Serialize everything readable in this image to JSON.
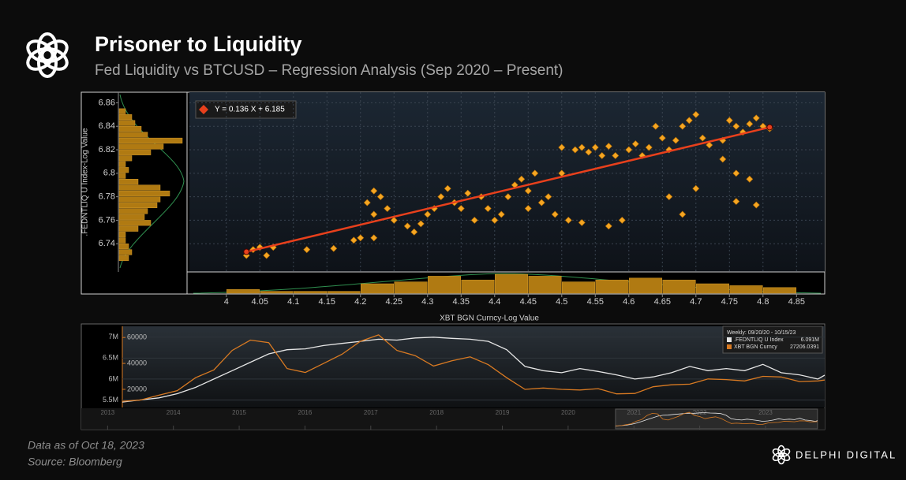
{
  "header": {
    "title": "Prisoner to Liquidity",
    "subtitle": "Fed Liquidity vs BTCUSD – Regression Analysis (Sep 2020 – Present)"
  },
  "chart_data": [
    {
      "type": "scatter",
      "x_label": "XBT BGN Curncy-Log Value",
      "y_label": ".FEDNTLIQ U Index-Log Value",
      "x": [
        4.03,
        4.04,
        4.05,
        4.06,
        4.07,
        4.12,
        4.16,
        4.19,
        4.2,
        4.22,
        4.21,
        4.22,
        4.23,
        4.24,
        4.22,
        4.25,
        4.27,
        4.28,
        4.3,
        4.29,
        4.31,
        4.32,
        4.33,
        4.34,
        4.35,
        4.36,
        4.37,
        4.38,
        4.39,
        4.4,
        4.41,
        4.42,
        4.43,
        4.44,
        4.45,
        4.46,
        4.45,
        4.47,
        4.48,
        4.49,
        4.5,
        4.5,
        4.52,
        4.53,
        4.54,
        4.55,
        4.56,
        4.57,
        4.58,
        4.51,
        4.53,
        4.57,
        4.59,
        4.6,
        4.61,
        4.62,
        4.63,
        4.64,
        4.65,
        4.66,
        4.67,
        4.68,
        4.69,
        4.7,
        4.71,
        4.66,
        4.68,
        4.7,
        4.74,
        4.75,
        4.76,
        4.77,
        4.78,
        4.79,
        4.76,
        4.78,
        4.79,
        4.8,
        4.81,
        4.76,
        4.74,
        4.72
      ],
      "y": [
        6.73,
        6.735,
        6.737,
        6.73,
        6.737,
        6.735,
        6.736,
        6.743,
        6.745,
        6.745,
        6.775,
        6.785,
        6.78,
        6.77,
        6.765,
        6.76,
        6.755,
        6.75,
        6.765,
        6.757,
        6.77,
        6.78,
        6.787,
        6.775,
        6.77,
        6.783,
        6.76,
        6.78,
        6.77,
        6.76,
        6.765,
        6.78,
        6.79,
        6.795,
        6.785,
        6.8,
        6.77,
        6.775,
        6.78,
        6.765,
        6.8,
        6.822,
        6.82,
        6.822,
        6.818,
        6.822,
        6.815,
        6.823,
        6.815,
        6.76,
        6.758,
        6.755,
        6.76,
        6.82,
        6.825,
        6.815,
        6.822,
        6.84,
        6.83,
        6.82,
        6.828,
        6.84,
        6.845,
        6.85,
        6.83,
        6.78,
        6.765,
        6.787,
        6.828,
        6.845,
        6.84,
        6.835,
        6.842,
        6.847,
        6.8,
        6.795,
        6.773,
        6.84,
        6.838,
        6.776,
        6.812,
        6.824
      ],
      "color": "#f5a623",
      "xlim": [
        3.945,
        4.892
      ],
      "ylim": [
        6.716,
        6.869
      ],
      "xticks": [
        4,
        4.05,
        4.1,
        4.15,
        4.2,
        4.25,
        4.3,
        4.35,
        4.4,
        4.45,
        4.5,
        4.55,
        4.6,
        4.65,
        4.7,
        4.75,
        4.8,
        4.85
      ],
      "yticks": [
        6.74,
        6.76,
        6.78,
        6.8,
        6.82,
        6.84,
        6.86
      ],
      "grid": true,
      "regression": {
        "label": "Y = 0.136 X + 6.185",
        "slope": 0.136,
        "intercept": 6.185,
        "color": "#e8401c"
      }
    },
    {
      "type": "histogram",
      "orientation": "horizontal",
      "color": "#b07a12",
      "bins": [
        6.725,
        6.73,
        6.735,
        6.74,
        6.745,
        6.75,
        6.755,
        6.76,
        6.765,
        6.77,
        6.775,
        6.78,
        6.785,
        6.79,
        6.795,
        6.8,
        6.805,
        6.81,
        6.815,
        6.82,
        6.825,
        6.83,
        6.835,
        6.84,
        6.845,
        6.85,
        6.855
      ],
      "counts": [
        3,
        4,
        3,
        2,
        2,
        6,
        10,
        8,
        9,
        12,
        13,
        16,
        13,
        6,
        2,
        3,
        2,
        4,
        10,
        14,
        20,
        9,
        7,
        5,
        4,
        2
      ]
    },
    {
      "type": "histogram",
      "orientation": "vertical",
      "color": "#b07a12",
      "bins": [
        4,
        4.05,
        4.1,
        4.15,
        4.2,
        4.25,
        4.3,
        4.35,
        4.4,
        4.45,
        4.5,
        4.55,
        4.6,
        4.65,
        4.7,
        4.75,
        4.8,
        4.85
      ],
      "counts": [
        2,
        1,
        1,
        1,
        5,
        6,
        9,
        7,
        10,
        9,
        6,
        7,
        8,
        7,
        5,
        4,
        3
      ]
    },
    {
      "type": "line",
      "x": [
        2020.72,
        2020.8,
        2020.88,
        2020.96,
        2021.04,
        2021.12,
        2021.2,
        2021.28,
        2021.36,
        2021.44,
        2021.52,
        2021.6,
        2021.68,
        2021.76,
        2021.84,
        2021.92,
        2022.0,
        2022.08,
        2022.16,
        2022.24,
        2022.32,
        2022.4,
        2022.48,
        2022.56,
        2022.64,
        2022.72,
        2022.8,
        2022.88,
        2022.96,
        2023.04,
        2023.12,
        2023.2,
        2023.28,
        2023.36,
        2023.44,
        2023.52,
        2023.6,
        2023.68,
        2023.76,
        2023.79
      ],
      "xlim": [
        2020.72,
        2023.79
      ],
      "ylim": [
        5320000,
        7240000
      ],
      "yticks": [
        {
          "value": 5500000,
          "label": "5.5M"
        },
        {
          "value": 6000000,
          "label": "6M"
        },
        {
          "value": 6500000,
          "label": "6.5M"
        },
        {
          "value": 7000000,
          "label": "7M"
        }
      ],
      "y2lim": [
        6000,
        68000
      ],
      "y2ticks": [
        20000,
        40000,
        60000
      ],
      "legend_title": "Weekly: 09/20/20 - 10/15/23",
      "series": [
        {
          "name": ".FEDNTLIQ U Index",
          "color": "#e6e6e6",
          "last_label": "6.091M",
          "values": [
            5450000,
            5500000,
            5550000,
            5650000,
            5800000,
            6000000,
            6200000,
            6400000,
            6600000,
            6700000,
            6720000,
            6800000,
            6850000,
            6900000,
            6950000,
            6930000,
            6980000,
            7000000,
            6970000,
            6950000,
            6900000,
            6700000,
            6300000,
            6200000,
            6150000,
            6250000,
            6180000,
            6100000,
            6000000,
            6050000,
            6150000,
            6300000,
            6200000,
            6250000,
            6200000,
            6350000,
            6150000,
            6100000,
            6000000,
            6091000
          ]
        },
        {
          "name": "XBT BGN Curncy",
          "color": "#d97a22",
          "axis": "y2",
          "values": [
            10800,
            11800,
            15500,
            19000,
            29000,
            35000,
            50000,
            58000,
            56000,
            36000,
            33000,
            40000,
            47000,
            57000,
            62000,
            50000,
            46000,
            38000,
            42000,
            45000,
            39000,
            29000,
            20000,
            21000,
            20000,
            19500,
            20500,
            16500,
            16800,
            22000,
            23500,
            24000,
            28000,
            27500,
            26500,
            30000,
            29500,
            26000,
            26500,
            27206.0391
          ]
        }
      ],
      "navigator": {
        "xlim": [
          2012.6,
          2023.9
        ],
        "xticks": [
          2013,
          2014,
          2015,
          2016,
          2017,
          2018,
          2019,
          2020,
          2021,
          2022,
          2023
        ]
      }
    }
  ],
  "footer": {
    "note": "Data as of Oct 18, 2023",
    "source": "Source: Bloomberg",
    "brand": "DELPHI DIGITAL"
  }
}
